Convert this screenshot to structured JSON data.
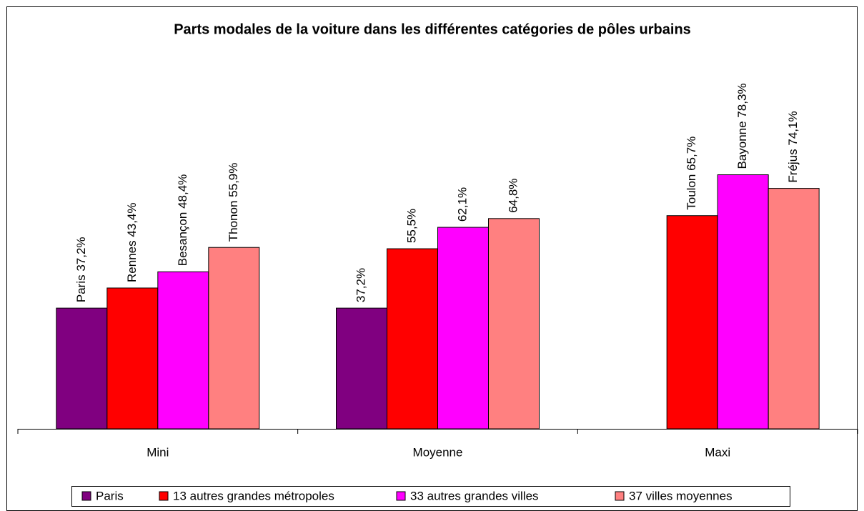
{
  "chart_data": {
    "type": "bar",
    "title": "Parts modales de la voiture dans les différentes catégories de pôles urbains",
    "categories": [
      "Mini",
      "Moyenne",
      "Maxi"
    ],
    "series": [
      {
        "name": "Paris",
        "color": "#800080",
        "values": [
          37.2,
          37.2,
          null
        ],
        "value_labels": [
          "Paris 37,2%",
          "37,2%",
          null
        ]
      },
      {
        "name": "13 autres grandes métropoles",
        "color": "#ff0000",
        "values": [
          43.4,
          55.5,
          65.7
        ],
        "value_labels": [
          "Rennes 43,4%",
          "55,5%",
          "Toulon 65,7%"
        ]
      },
      {
        "name": "33 autres grandes villes",
        "color": "#ff00ff",
        "values": [
          48.4,
          62.1,
          78.3
        ],
        "value_labels": [
          "Besançon 48,4%",
          "62,1%",
          "Bayonne 78,3%"
        ]
      },
      {
        "name": "37 villes moyennes",
        "color": "#ff8080",
        "values": [
          55.9,
          64.8,
          74.1
        ],
        "value_labels": [
          "Thonon 55,9%",
          "64,8%",
          "Fréjus 74,1%"
        ]
      }
    ],
    "ylim": [
      0,
      100
    ]
  }
}
